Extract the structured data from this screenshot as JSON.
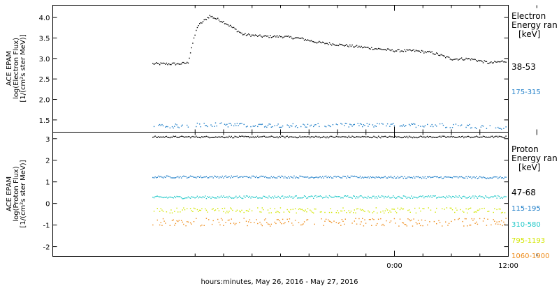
{
  "chart_data": [
    {
      "type": "scatter",
      "panel": "electron",
      "ylabel_lines": [
        "ACE EPAM",
        "log(Electron Flux)",
        "[1/(cm²s ster MeV)]"
      ],
      "ylim": [
        1.2,
        4.3
      ],
      "yticks": [
        "1.5",
        "2.0",
        "2.5",
        "3.0",
        "3.5",
        "4.0"
      ],
      "ytick_values": [
        1.5,
        2.0,
        2.5,
        3.0,
        3.5,
        4.0
      ],
      "legend_title": [
        "Electron",
        "Energy ran",
        "[keV]"
      ],
      "series": [
        {
          "name": "38-53",
          "color": "#000000",
          "x": [
            -1.5,
            0,
            1.2,
            2.2,
            2.6,
            3.2,
            4.5,
            6,
            8,
            10,
            12,
            14,
            16,
            18,
            20,
            22,
            24,
            26,
            28,
            30,
            32,
            34,
            35.8
          ],
          "y": [
            2.88,
            2.88,
            2.88,
            2.9,
            3.3,
            3.8,
            4.05,
            3.9,
            3.6,
            3.55,
            3.55,
            3.5,
            3.4,
            3.35,
            3.3,
            3.25,
            3.2,
            3.2,
            3.15,
            3.0,
            3.0,
            2.9,
            2.95
          ]
        },
        {
          "name": "175-315",
          "color": "#1e7ec8",
          "x": [
            -1.5,
            0,
            4,
            8,
            12,
            16,
            20,
            24,
            28,
            32,
            35.8
          ],
          "y": [
            1.35,
            1.35,
            1.4,
            1.38,
            1.38,
            1.37,
            1.38,
            1.38,
            1.38,
            1.36,
            1.3
          ]
        }
      ]
    },
    {
      "type": "scatter",
      "panel": "proton",
      "ylabel_lines": [
        "ACE EPAM",
        "log(Proton Flux)",
        "[1/(cm²s ster MeV)]"
      ],
      "ylim": [
        -2.45,
        3.3
      ],
      "yticks": [
        "-2",
        "-1",
        "0",
        "1",
        "2",
        "3"
      ],
      "ytick_values": [
        -2,
        -1,
        0,
        1,
        2,
        3
      ],
      "legend_title": [
        "Proton",
        "Energy ran",
        "[keV]"
      ],
      "series": [
        {
          "name": "47-68",
          "color": "#000000",
          "x": [
            -1.5,
            12,
            35.8
          ],
          "y": [
            3.1,
            3.1,
            3.1
          ]
        },
        {
          "name": "115-195",
          "color": "#1e7ec8",
          "x": [
            -1.5,
            12,
            35.8
          ],
          "y": [
            1.25,
            1.25,
            1.22
          ]
        },
        {
          "name": "310-580",
          "color": "#20c8c8",
          "x": [
            -1.5,
            12,
            35.8
          ],
          "y": [
            0.3,
            0.32,
            0.32
          ]
        },
        {
          "name": "795-1193",
          "color": "#d2e600",
          "x": [
            -1.5,
            12,
            35.8
          ],
          "y": [
            -0.3,
            -0.3,
            -0.3
          ]
        },
        {
          "name": "1060-1900",
          "color": "#ee8c1a",
          "x": [
            -1.5,
            12,
            35.8
          ],
          "y": [
            -0.85,
            -0.85,
            -0.85
          ]
        }
      ]
    }
  ],
  "x_axis": {
    "xlim": [
      -12,
      36
    ],
    "major_ticks": [
      {
        "value": 24,
        "label": "0:00"
      },
      {
        "value": 36,
        "label": "12:00"
      }
    ],
    "minor_tick_hours": [
      3,
      6,
      9,
      12,
      15,
      18,
      21,
      27,
      30,
      33,
      39,
      42,
      45
    ],
    "title": "hours:minutes, May 26, 2016 - May 27, 2016"
  }
}
